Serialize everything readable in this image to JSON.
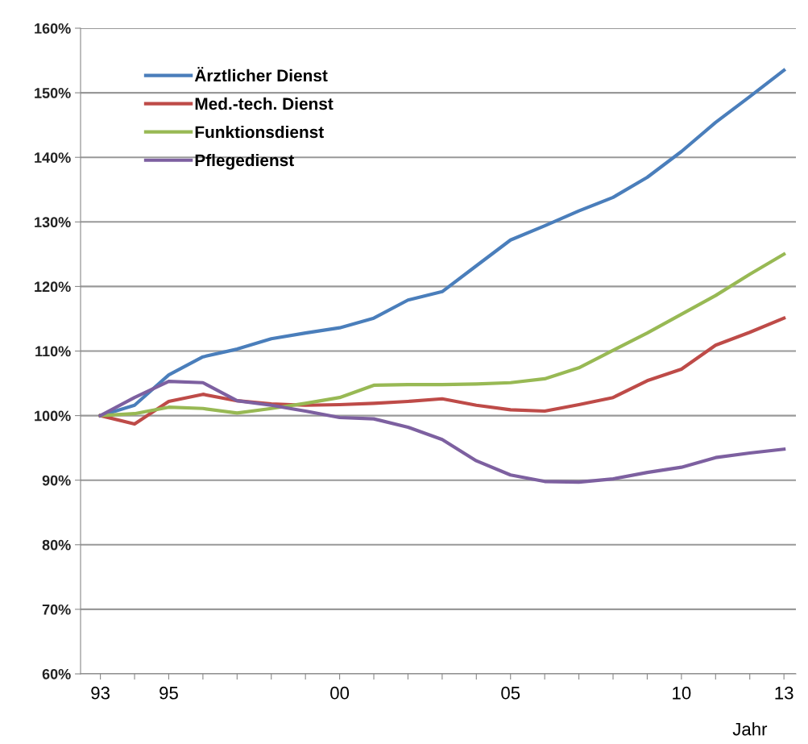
{
  "chart_data": {
    "type": "line",
    "xlabel": "Jahr",
    "categories": [
      "93",
      null,
      "95",
      null,
      null,
      null,
      null,
      "00",
      null,
      null,
      null,
      null,
      "05",
      null,
      null,
      null,
      null,
      "10",
      null,
      null,
      "13"
    ],
    "series": [
      {
        "name": "Ärztlicher Dienst",
        "color": "#4a7ebb",
        "values": [
          100,
          101.6,
          106.3,
          109.1,
          110.3,
          111.9,
          112.8,
          113.6,
          115.1,
          117.9,
          119.2,
          123.2,
          127.2,
          129.4,
          131.7,
          133.8,
          136.9,
          140.9,
          145.4,
          149.4,
          153.5
        ]
      },
      {
        "name": "Med.-tech. Dienst",
        "color": "#be4b48",
        "values": [
          100,
          98.7,
          102.2,
          103.3,
          102.3,
          101.8,
          101.6,
          101.7,
          101.9,
          102.2,
          102.6,
          101.6,
          100.9,
          100.7,
          101.7,
          102.8,
          105.4,
          107.2,
          110.9,
          112.9,
          115.1
        ]
      },
      {
        "name": "Funktionsdienst",
        "color": "#98b954",
        "values": [
          100,
          100.3,
          101.3,
          101.1,
          100.4,
          101.1,
          101.9,
          102.8,
          104.7,
          104.8,
          104.8,
          104.9,
          105.1,
          105.7,
          107.4,
          110.1,
          112.8,
          115.7,
          118.6,
          121.9,
          125.0
        ]
      },
      {
        "name": "Pflegedienst",
        "color": "#7d60a0",
        "values": [
          100,
          102.8,
          105.3,
          105.1,
          102.3,
          101.6,
          100.7,
          99.7,
          99.5,
          98.2,
          96.3,
          93.0,
          90.8,
          89.8,
          89.7,
          90.2,
          91.2,
          92.0,
          93.5,
          94.2,
          94.8
        ]
      }
    ],
    "ylim": [
      60,
      160
    ],
    "yticks": [
      {
        "value": 60,
        "label": "60%"
      },
      {
        "value": 70,
        "label": "70%"
      },
      {
        "value": 80,
        "label": "80%"
      },
      {
        "value": 90,
        "label": "90%"
      },
      {
        "value": 100,
        "label": "100%"
      },
      {
        "value": 110,
        "label": "110%"
      },
      {
        "value": 120,
        "label": "120%"
      },
      {
        "value": 130,
        "label": "130%"
      },
      {
        "value": 140,
        "label": "140%"
      },
      {
        "value": 150,
        "label": "150%"
      },
      {
        "value": 160,
        "label": "160%"
      }
    ],
    "grid": "y",
    "legend": "top left",
    "marker": "none",
    "line_style": "solid"
  }
}
